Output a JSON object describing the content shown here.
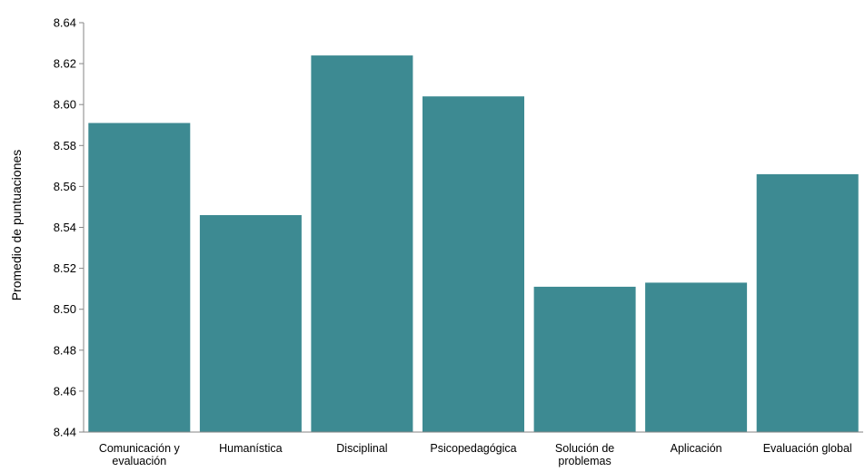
{
  "chart_data": {
    "type": "bar",
    "title": "",
    "xlabel": "",
    "ylabel": "Promedio de puntuaciones",
    "ylim": [
      8.44,
      8.64
    ],
    "yticks": [
      "8.44",
      "8.46",
      "8.48",
      "8.50",
      "8.52",
      "8.54",
      "8.56",
      "8.58",
      "8.60",
      "8.62",
      "8.64"
    ],
    "categories": [
      [
        "Comunicación y",
        "evaluación"
      ],
      [
        "Humanística"
      ],
      [
        "Disciplinal"
      ],
      [
        "Psicopedagógica"
      ],
      [
        "Solución de",
        "problemas"
      ],
      [
        "Aplicación"
      ],
      [
        "Evaluación global"
      ]
    ],
    "values": [
      8.591,
      8.546,
      8.624,
      8.604,
      8.511,
      8.513,
      8.566
    ],
    "grid": false,
    "bar_color": "#3d8a92",
    "axis_color": "#868686"
  }
}
